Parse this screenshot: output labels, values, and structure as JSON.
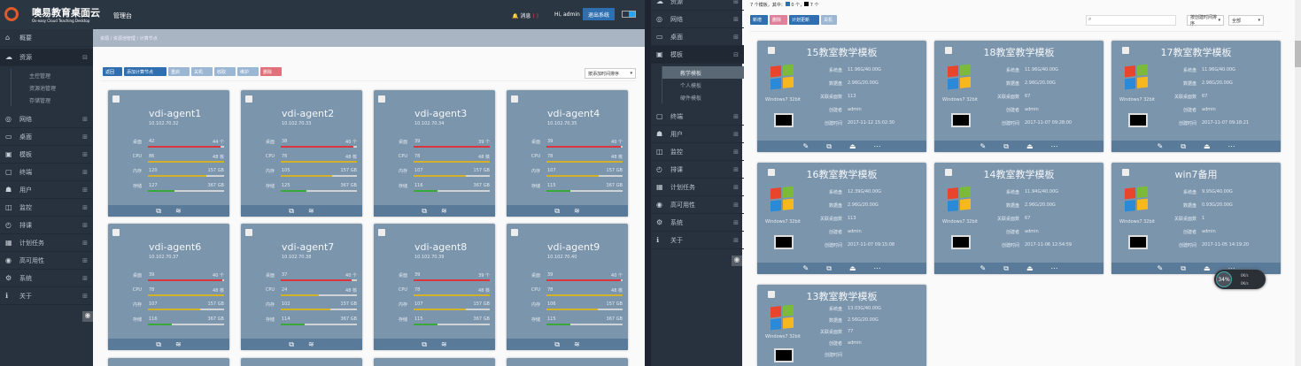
{
  "colors": {
    "header": "#2b3643",
    "sidebar": "#28323f",
    "card": "#7b95ad",
    "card_footer": "#5a7a9a",
    "desktop_bar": "#d9363e",
    "cpu_bar": "#d4b12a",
    "memory_bar": "#d4b12a",
    "storage_bar": "#3aa93a",
    "primary": "#2f6fb0",
    "danger": "#e0707a"
  },
  "left": {
    "brand": {
      "name": "噢易教育桌面云",
      "subtitle": "Os-easy Cloud Teaching Desktop",
      "console": "管理台"
    },
    "header": {
      "messages": "消息",
      "message_count": "( )",
      "greeting": "Hi, admin",
      "logout": "退出系统"
    },
    "breadcrumb": [
      "资源",
      "资源池管理",
      "计算节点"
    ],
    "sidebar": [
      {
        "label": "概要",
        "icon": "home-icon"
      },
      {
        "label": "资源",
        "icon": "cloud-icon",
        "expanded": true,
        "children": [
          "主控管理",
          "资源池管理",
          "存储管理"
        ]
      },
      {
        "label": "网络",
        "icon": "network-icon"
      },
      {
        "label": "桌面",
        "icon": "desktop-icon"
      },
      {
        "label": "模板",
        "icon": "template-icon"
      },
      {
        "label": "终端",
        "icon": "terminal-icon"
      },
      {
        "label": "用户",
        "icon": "user-icon"
      },
      {
        "label": "监控",
        "icon": "monitor-icon"
      },
      {
        "label": "排课",
        "icon": "clock-icon"
      },
      {
        "label": "计划任务",
        "icon": "calendar-icon"
      },
      {
        "label": "高可用性",
        "icon": "ha-icon"
      },
      {
        "label": "系统",
        "icon": "gear-icon"
      },
      {
        "label": "关于",
        "icon": "info-icon"
      }
    ],
    "toolbar": [
      "返回",
      "添加计算节点",
      "重启",
      "关机",
      "收取",
      "维护",
      "删除"
    ],
    "sort": "按添加时间排序",
    "labels": {
      "desktop": "桌面",
      "cpu": "CPU",
      "memory": "内存",
      "storage": "存储",
      "unit_desktop": "个",
      "unit_cpu": "核",
      "unit_gb": "GB"
    },
    "agents": [
      {
        "name": "vdi-agent1",
        "ip": "10.102.70.32",
        "desktop": [
          42,
          44
        ],
        "cpu": [
          86,
          48
        ],
        "memory": [
          120,
          157
        ],
        "storage": [
          127,
          367
        ]
      },
      {
        "name": "vdi-agent2",
        "ip": "10.102.70.33",
        "desktop": [
          38,
          40
        ],
        "cpu": [
          76,
          48
        ],
        "memory": [
          105,
          157
        ],
        "storage": [
          125,
          367
        ]
      },
      {
        "name": "vdi-agent3",
        "ip": "10.102.70.34",
        "desktop": [
          39,
          39
        ],
        "cpu": [
          78,
          48
        ],
        "memory": [
          107,
          157
        ],
        "storage": [
          116,
          367
        ]
      },
      {
        "name": "vdi-agent4",
        "ip": "10.102.70.35",
        "desktop": [
          39,
          40
        ],
        "cpu": [
          78,
          48
        ],
        "memory": [
          107,
          157
        ],
        "storage": [
          115,
          367
        ]
      },
      {
        "name": "vdi-agent6",
        "ip": "10.102.70.37",
        "desktop": [
          39,
          40
        ],
        "cpu": [
          78,
          48
        ],
        "memory": [
          107,
          157
        ],
        "storage": [
          116,
          367
        ]
      },
      {
        "name": "vdi-agent7",
        "ip": "10.102.70.38",
        "desktop": [
          37,
          40
        ],
        "cpu": [
          24,
          48
        ],
        "memory": [
          102,
          157
        ],
        "storage": [
          114,
          367
        ]
      },
      {
        "name": "vdi-agent8",
        "ip": "10.102.70.39",
        "desktop": [
          39,
          39
        ],
        "cpu": [
          78,
          48
        ],
        "memory": [
          107,
          157
        ],
        "storage": [
          115,
          367
        ]
      },
      {
        "name": "vdi-agent9",
        "ip": "10.102.70.40",
        "desktop": [
          39,
          40
        ],
        "cpu": [
          78,
          48
        ],
        "memory": [
          106,
          157
        ],
        "storage": [
          115,
          367
        ]
      }
    ]
  },
  "right": {
    "sidebar": [
      {
        "label": "资源",
        "icon": "cloud-icon"
      },
      {
        "label": "网络",
        "icon": "network-icon"
      },
      {
        "label": "桌面",
        "icon": "desktop-icon"
      },
      {
        "label": "模板",
        "icon": "template-icon",
        "expanded": true,
        "children": [
          "教学模板",
          "个人模板",
          "硬件模板"
        ]
      },
      {
        "label": "终端",
        "icon": "terminal-icon"
      },
      {
        "label": "用户",
        "icon": "user-icon"
      },
      {
        "label": "监控",
        "icon": "monitor-icon"
      },
      {
        "label": "排课",
        "icon": "clock-icon"
      },
      {
        "label": "计划任务",
        "icon": "calendar-icon"
      },
      {
        "label": "高可用性",
        "icon": "ha-icon"
      },
      {
        "label": "系统",
        "icon": "gear-icon"
      },
      {
        "label": "关于",
        "icon": "info-icon"
      }
    ],
    "summary": {
      "prefix": "7 个模板，其中：",
      "a": "0 个，",
      "b": "7 个"
    },
    "toolbar": [
      "新增",
      "删除",
      "计划更新",
      "关机"
    ],
    "search_placeholder": "",
    "sort": "按创建时间排序",
    "filter": "全部",
    "labels": {
      "system_disk": "系统盘",
      "data_disk": "数据盘",
      "linked": "关联桌面数",
      "creator": "创建者",
      "created": "创建时间"
    },
    "templates": [
      {
        "name": "15教室教学模板",
        "os": "Windows7 32bit",
        "system_disk": "11.96G/40.00G",
        "data_disk": "2.96G/20.00G",
        "linked": "113",
        "creator": "admin",
        "created": "2017-11-12 15:02:30"
      },
      {
        "name": "18教室教学模板",
        "os": "Windows7 32bit",
        "system_disk": "11.96G/40.00G",
        "data_disk": "2.96G/20.00G",
        "linked": "67",
        "creator": "admin",
        "created": "2017-11-07 09:28:00"
      },
      {
        "name": "17教室教学模板",
        "os": "Windows7 32bit",
        "system_disk": "11.96G/40.00G",
        "data_disk": "2.96G/20.00G",
        "linked": "67",
        "creator": "admin",
        "created": "2017-11-07 09:18:21"
      },
      {
        "name": "16教室教学模板",
        "os": "Windows7 32bit",
        "system_disk": "12.39G/40.00G",
        "data_disk": "2.96G/20.00G",
        "linked": "113",
        "creator": "admin",
        "created": "2017-11-07 09:15:08"
      },
      {
        "name": "14教室教学模板",
        "os": "Windows7 32bit",
        "system_disk": "11.94G/40.00G",
        "data_disk": "2.96G/20.00G",
        "linked": "67",
        "creator": "admin",
        "created": "2017-11-06 12:54:59"
      },
      {
        "name": "win7备用",
        "os": "Windows7 32bit",
        "system_disk": "9.95G/40.00G",
        "data_disk": "0.93G/20.00G",
        "linked": "1",
        "creator": "admin",
        "created": "2017-11-05 14:19:20"
      },
      {
        "name": "13教室教学模板",
        "os": "Windows7 32bit",
        "system_disk": "13.03G/40.00G",
        "data_disk": "2.56G/20.00G",
        "linked": "77",
        "creator": "admin",
        "created": ""
      }
    ],
    "widget": {
      "percent": "34%",
      "up": "0K/s",
      "down": "0K/s"
    }
  }
}
